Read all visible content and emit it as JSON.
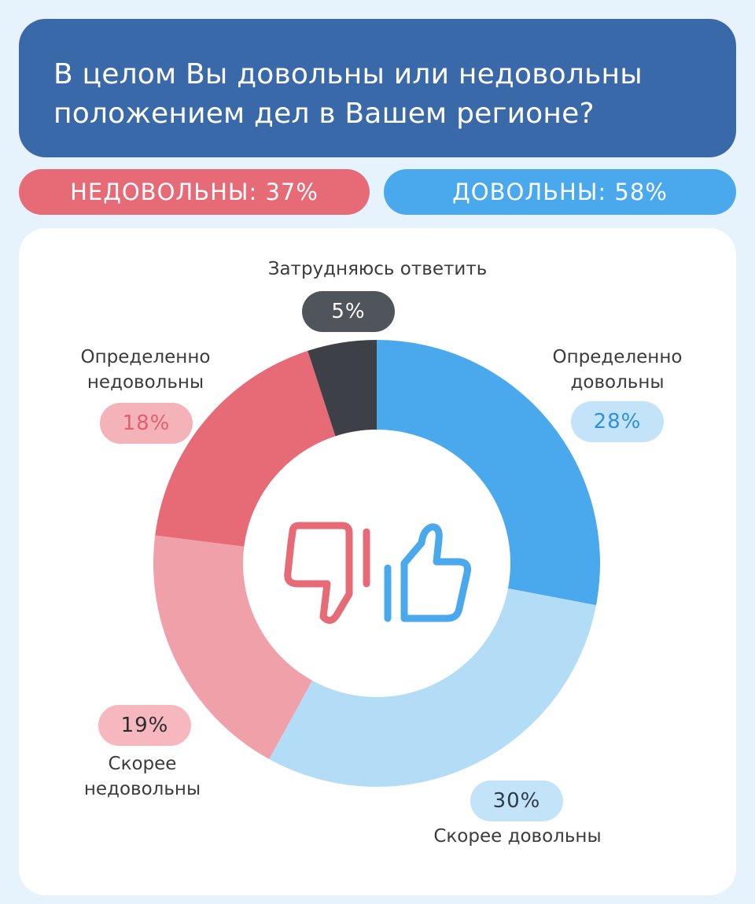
{
  "header": {
    "title_line1": "В целом Вы довольны или недовольны",
    "title_line2": "положением дел в Вашем регионе?"
  },
  "summary": {
    "negative": "НЕДОВОЛЬНЫ: 37%",
    "positive": "ДОВОЛЬНЫ: 58%"
  },
  "colors": {
    "header_bg": "#3a69a9",
    "negative": "#e76a77",
    "negative_light": "#f0a0a8",
    "positive": "#4aa8ec",
    "positive_light": "#b3dcf7",
    "undecided": "#3d4047",
    "page_bg": "#e6f3fc"
  },
  "icons": [
    "thumbs-down-icon",
    "thumbs-up-icon"
  ],
  "chart_data": {
    "type": "pie",
    "title": "В целом Вы довольны или недовольны положением дел в Вашем регионе?",
    "donut": true,
    "start": "top",
    "direction": "clockwise",
    "slices": [
      {
        "label": "Определенно довольны",
        "value": 28,
        "text": "28%",
        "color": "#4aa8ec",
        "badge_bg": "#c3e3f8",
        "badge_fg": "#2f8fe0"
      },
      {
        "label": "Скорее довольны",
        "value": 30,
        "text": "30%",
        "color": "#b3dcf7",
        "badge_bg": "#c3e3f8",
        "badge_fg": "#2d3a4a"
      },
      {
        "label": "Скорее недовольны",
        "value": 19,
        "text": "19%",
        "color": "#f0a0a8",
        "badge_bg": "#f6b8be",
        "badge_fg": "#2d2d2d"
      },
      {
        "label": "Определенно недовольны",
        "value": 18,
        "text": "18%",
        "color": "#e76a77",
        "badge_bg": "#f3b3b9",
        "badge_fg": "#e4606e"
      },
      {
        "label": "Затрудняюсь ответить",
        "value": 5,
        "text": "5%",
        "color": "#3d4047",
        "badge_bg": "#50545b",
        "badge_fg": "#ffffff"
      }
    ]
  }
}
